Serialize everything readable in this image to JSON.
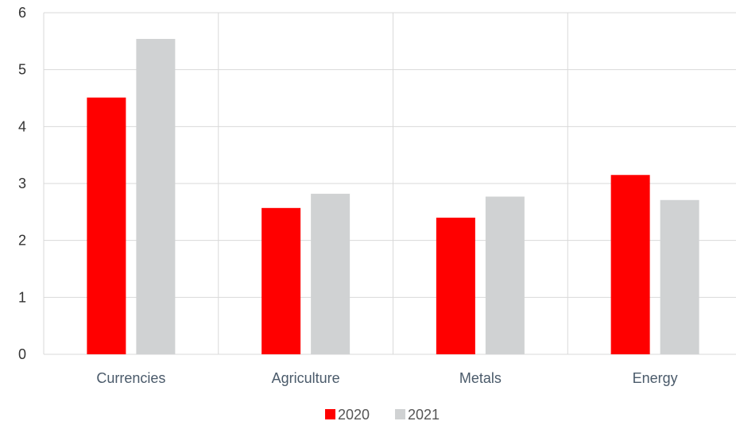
{
  "chart_data": {
    "type": "bar",
    "categories": [
      "Currencies",
      "Agriculture",
      "Metals",
      "Energy"
    ],
    "series": [
      {
        "name": "2020",
        "values": [
          4.51,
          2.57,
          2.4,
          3.15
        ],
        "color": "#ff0000"
      },
      {
        "name": "2021",
        "values": [
          5.54,
          2.82,
          2.77,
          2.71
        ],
        "color": "#d0d2d3"
      }
    ],
    "ylim": [
      0,
      6
    ],
    "yticks": [
      "0",
      "1",
      "2",
      "3",
      "4",
      "5",
      "6"
    ],
    "grid": true,
    "legend_position": "bottom"
  }
}
